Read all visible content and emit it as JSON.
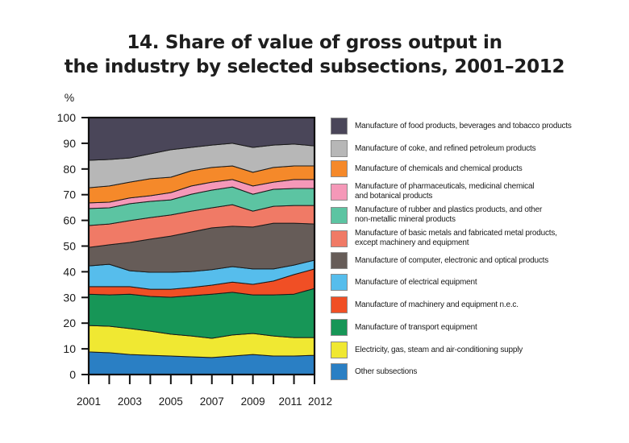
{
  "chart_data": {
    "type": "area",
    "stacked": true,
    "title": "14. Share of value of gross output in the industry by selected subsections, 2001–2012",
    "title_lines": [
      "14. Share of value of gross output in",
      "the industry by selected subsections, 2001–2012"
    ],
    "ylabel": "%",
    "xlabel": "",
    "ylim": [
      0,
      100
    ],
    "yticks": [
      0,
      10,
      20,
      30,
      40,
      50,
      60,
      70,
      80,
      90,
      100
    ],
    "x": [
      2001,
      2002,
      2003,
      2004,
      2005,
      2006,
      2007,
      2008,
      2009,
      2010,
      2011,
      2012
    ],
    "xtick_labels": [
      "2001",
      "2003",
      "2005",
      "2007",
      "2009",
      "2011",
      "2012"
    ],
    "xtick_label_years": [
      2001,
      2003,
      2005,
      2007,
      2009,
      2011,
      2012
    ],
    "grid": false,
    "legend_position": "right",
    "series": [
      {
        "name": "Other subsections",
        "color": "#2a7fc4",
        "values": [
          8.8,
          8.5,
          7.8,
          7.5,
          7.2,
          6.9,
          6.6,
          7.2,
          7.8,
          7.2,
          7.2,
          7.5
        ]
      },
      {
        "name": "Electricity, gas, steam and air-conditioning supply",
        "color": "#f0e832",
        "values": [
          10.3,
          10.3,
          10.1,
          9.4,
          8.5,
          8.1,
          7.5,
          8.2,
          8.2,
          7.8,
          7.2,
          6.9
        ]
      },
      {
        "name": "Manufacture of transport equipment",
        "color": "#179657",
        "values": [
          12.2,
          12.2,
          13.4,
          13.5,
          14.4,
          15.7,
          17.2,
          16.6,
          15.0,
          16.0,
          16.9,
          19.1
        ]
      },
      {
        "name": "Manufacture of machinery and equipment n.e.c.",
        "color": "#f04f25",
        "values": [
          2.9,
          3.2,
          2.9,
          2.8,
          3.1,
          3.2,
          3.5,
          4.0,
          4.1,
          5.4,
          7.6,
          7.6
        ]
      },
      {
        "name": "Manufacture of electrical equipment",
        "color": "#56bdec",
        "values": [
          8.1,
          8.7,
          6.2,
          6.6,
          6.6,
          6.2,
          6.0,
          6.0,
          6.0,
          4.7,
          3.7,
          3.4
        ]
      },
      {
        "name": "Manufacture of computer, electronic  and optical products",
        "color": "#665c58",
        "values": [
          7.2,
          7.6,
          11.0,
          12.9,
          14.1,
          15.4,
          16.3,
          15.7,
          16.3,
          17.8,
          16.3,
          14.1
        ]
      },
      {
        "name": "Manufacture of basic metals and fabricated metal products,\nexcept machinery and equipment",
        "color": "#f07a66",
        "values": [
          8.5,
          8.1,
          8.5,
          8.4,
          8.2,
          8.1,
          7.8,
          8.4,
          6.2,
          6.6,
          6.9,
          7.2
        ]
      },
      {
        "name": "Manufacture of rubber and plastics products, and other\nnon-metallic mineral products",
        "color": "#5cc4a2",
        "values": [
          6.6,
          6.3,
          6.6,
          6.3,
          5.9,
          6.6,
          6.9,
          6.9,
          6.6,
          6.6,
          6.6,
          6.6
        ]
      },
      {
        "name": "Manufacture of pharmaceuticals, medicinal chemical\nand botanical products",
        "color": "#f598b8",
        "values": [
          2.2,
          2.2,
          2.2,
          2.2,
          2.8,
          3.2,
          3.1,
          2.9,
          3.2,
          2.8,
          3.5,
          3.5
        ]
      },
      {
        "name": "Manufacture of chemicals and chemical products",
        "color": "#f5892a",
        "values": [
          5.9,
          6.3,
          6.2,
          6.6,
          6.0,
          5.9,
          5.7,
          5.3,
          5.3,
          5.7,
          5.3,
          5.3
        ]
      },
      {
        "name": "Manufacture of coke, and refined petroleum products",
        "color": "#b7b7b7",
        "values": [
          10.7,
          10.3,
          9.4,
          9.7,
          10.7,
          9.1,
          8.7,
          8.8,
          9.7,
          8.7,
          8.5,
          7.8
        ]
      },
      {
        "name": "Manufacture of food products, beverages and tobacco products",
        "color": "#4a4659",
        "values": [
          16.6,
          16.3,
          15.7,
          14.1,
          12.5,
          11.6,
          10.7,
          10.0,
          11.6,
          10.7,
          10.3,
          11.0
        ]
      }
    ]
  }
}
